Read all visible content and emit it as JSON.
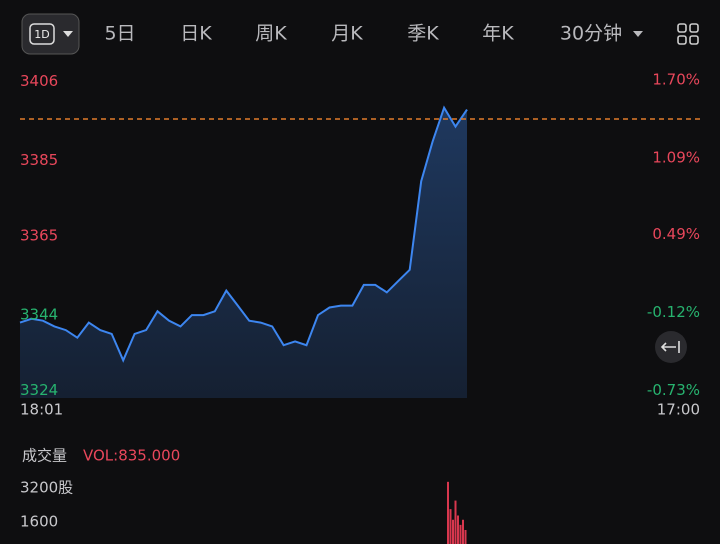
{
  "tabs": [
    "1D",
    "5日",
    "日K",
    "周K",
    "月K",
    "季K",
    "年K",
    "30分钟"
  ],
  "chart_data": [
    {
      "type": "line",
      "x_labels": [
        "18:01",
        "17:00"
      ],
      "series": [
        {
          "color": "#3d86f0",
          "values": [
            3342,
            3343,
            3342.5,
            3341,
            3340,
            3338,
            3342,
            3340,
            3339,
            3332,
            3339,
            3340,
            3345,
            3342.5,
            3341,
            3344,
            3344,
            3345,
            3350.5,
            3346.5,
            3342.5,
            3342,
            3341,
            3336,
            3337,
            3336,
            3344,
            3346,
            3346.5,
            3346.5,
            3352,
            3352,
            3350,
            3353,
            3356,
            3379.5,
            3390,
            3399,
            3394,
            3398.5
          ]
        }
      ],
      "ylim": [
        3322,
        3409
      ],
      "yticks": [
        3406,
        3385,
        3365,
        3344,
        3324
      ],
      "y2lim": [
        -0.79,
        1.78
      ],
      "y2ticks": [
        {
          "value": 1.7,
          "label": "1.70%"
        },
        {
          "value": 1.09,
          "label": "1.09%"
        },
        {
          "value": 0.49,
          "label": "0.49%"
        },
        {
          "value": -0.12,
          "label": "-0.12%"
        },
        {
          "value": -0.73,
          "label": "-0.73%"
        }
      ],
      "ref_line": {
        "value": 3396,
        "color": "#e07b2a"
      },
      "colors": {
        "up": "#e8475b",
        "down": "#27b36f"
      }
    },
    {
      "type": "bar",
      "title": "成交量",
      "subtitle": "VOL:835.000",
      "color": "#d8374e",
      "values": [
        3480,
        2200,
        1700,
        2600,
        1900,
        1460,
        1700,
        1220
      ],
      "ylim": [
        0,
        3800
      ],
      "yticks": [
        {
          "value": 3200,
          "label": "3200股"
        },
        1600
      ]
    }
  ]
}
